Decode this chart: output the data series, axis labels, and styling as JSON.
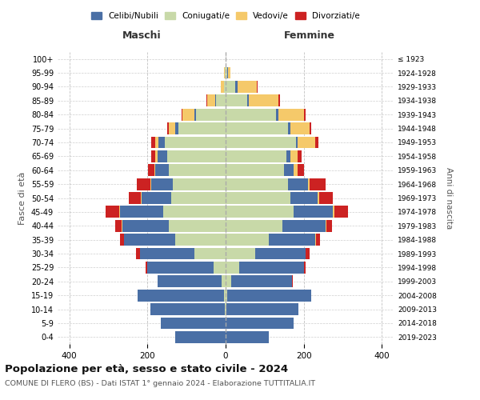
{
  "age_groups": [
    "0-4",
    "5-9",
    "10-14",
    "15-19",
    "20-24",
    "25-29",
    "30-34",
    "35-39",
    "40-44",
    "45-49",
    "50-54",
    "55-59",
    "60-64",
    "65-69",
    "70-74",
    "75-79",
    "80-84",
    "85-89",
    "90-94",
    "95-99",
    "100+"
  ],
  "birth_years": [
    "2019-2023",
    "2014-2018",
    "2009-2013",
    "2004-2008",
    "1999-2003",
    "1994-1998",
    "1989-1993",
    "1984-1988",
    "1979-1983",
    "1974-1978",
    "1969-1973",
    "1964-1968",
    "1959-1963",
    "1954-1958",
    "1949-1953",
    "1944-1948",
    "1939-1943",
    "1934-1938",
    "1929-1933",
    "1924-1928",
    "≤ 1923"
  ],
  "colors": {
    "celibe": "#4a6fa5",
    "coniugato": "#c8d9a8",
    "vedovo": "#f5c96a",
    "divorziato": "#cc2222"
  },
  "maschi": {
    "coniugato": [
      0,
      0,
      3,
      5,
      10,
      30,
      80,
      130,
      145,
      160,
      140,
      135,
      145,
      150,
      155,
      120,
      75,
      25,
      5,
      2,
      0
    ],
    "celibe": [
      130,
      165,
      190,
      220,
      165,
      170,
      140,
      130,
      120,
      110,
      75,
      55,
      35,
      25,
      18,
      10,
      5,
      2,
      0,
      0,
      0
    ],
    "vedovo": [
      0,
      0,
      0,
      0,
      0,
      0,
      0,
      0,
      2,
      2,
      3,
      3,
      3,
      5,
      8,
      15,
      30,
      20,
      8,
      2,
      0
    ],
    "divorziato": [
      0,
      0,
      0,
      0,
      0,
      5,
      10,
      10,
      15,
      35,
      30,
      35,
      15,
      10,
      10,
      5,
      3,
      3,
      0,
      0,
      0
    ]
  },
  "femmine": {
    "coniugata": [
      0,
      0,
      2,
      5,
      15,
      35,
      75,
      110,
      145,
      175,
      165,
      160,
      150,
      155,
      180,
      160,
      130,
      55,
      25,
      5,
      0
    ],
    "celibe": [
      110,
      175,
      185,
      215,
      155,
      165,
      130,
      120,
      110,
      100,
      70,
      50,
      25,
      10,
      5,
      5,
      5,
      5,
      5,
      2,
      0
    ],
    "vedova": [
      0,
      0,
      0,
      0,
      0,
      0,
      0,
      2,
      2,
      3,
      5,
      5,
      10,
      20,
      45,
      50,
      65,
      75,
      50,
      5,
      0
    ],
    "divorziata": [
      0,
      0,
      0,
      0,
      3,
      5,
      10,
      10,
      15,
      35,
      35,
      40,
      15,
      10,
      8,
      5,
      5,
      5,
      2,
      0,
      0
    ]
  },
  "xlim": 430,
  "title": "Popolazione per età, sesso e stato civile - 2024",
  "subtitle": "COMUNE DI FLERO (BS) - Dati ISTAT 1° gennaio 2024 - Elaborazione TUTTITALIA.IT",
  "xlabel_left": "Maschi",
  "xlabel_right": "Femmine",
  "ylabel": "Fasce di età",
  "ylabel_right": "Anni di nascita",
  "bg_color": "#ffffff",
  "grid_color": "#bbbbbb"
}
